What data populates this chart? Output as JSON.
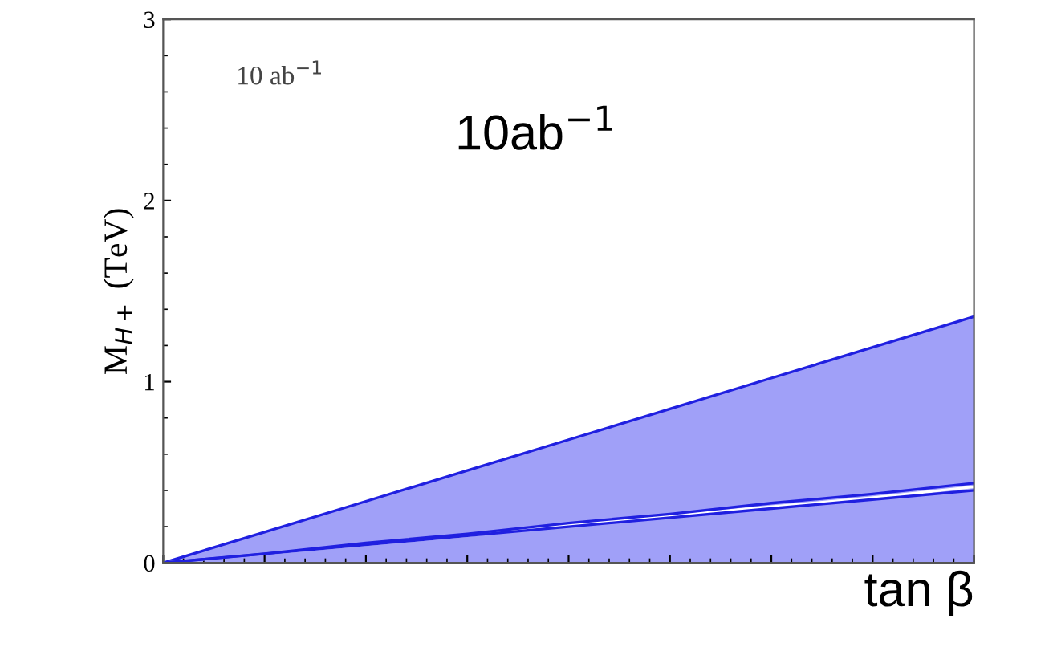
{
  "chart_data": {
    "type": "area",
    "ylabel": "M$_{H+}$ (TeV)",
    "xlabel": "tan β",
    "categories": [
      null,
      null,
      null,
      null,
      null,
      null,
      null,
      null,
      null
    ],
    "series": [
      {
        "color": "#a0a0f8",
        "values": [
          0,
          0.17,
          0.34,
          0.51,
          0.68,
          0.85,
          1.02,
          1.19,
          1.36
        ]
      },
      {
        "type": "line",
        "color": "#ffffff",
        "values": [
          0,
          0.05,
          0.1,
          0.15,
          0.21,
          0.26,
          0.31,
          0.36,
          0.42
        ]
      },
      {
        "type": "line",
        "color": "#2020e0",
        "values": [
          0,
          0.05,
          0.11,
          0.16,
          0.22,
          0.27,
          0.33,
          0.38,
          0.44
        ]
      },
      {
        "type": "line",
        "color": "#2020e0",
        "values": [
          0,
          0.05,
          0.1,
          0.15,
          0.2,
          0.25,
          0.3,
          0.35,
          0.4
        ]
      }
    ],
    "ylim": [
      0,
      3
    ],
    "yticks": [
      0,
      1,
      2,
      3
    ],
    "tick_labels": "y",
    "annotations": [
      "10 ab$^{−1}$",
      "10ab$^{−1}$"
    ]
  }
}
